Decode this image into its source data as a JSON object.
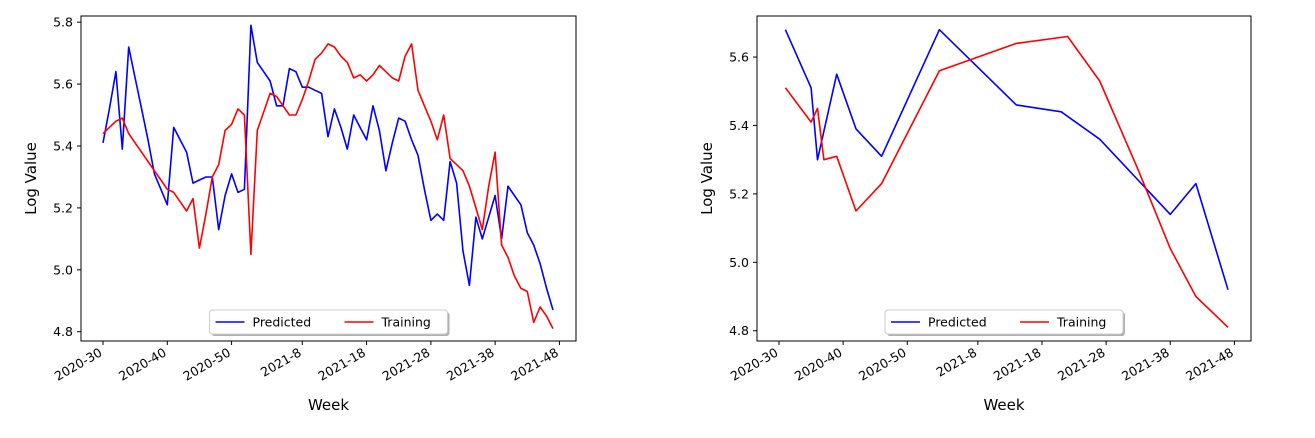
{
  "chart_data": [
    {
      "type": "line",
      "title": "",
      "xlabel": "Week",
      "ylabel": "Log Value",
      "ylim": [
        4.77,
        5.82
      ],
      "x_range_weeks": [
        -1.2,
        69.6
      ],
      "xticks": [
        {
          "week": 0,
          "label": "2020-30"
        },
        {
          "week": 10,
          "label": "2020-40"
        },
        {
          "week": 20,
          "label": "2020-50"
        },
        {
          "week": 31,
          "label": "2021-8"
        },
        {
          "week": 41,
          "label": "2021-18"
        },
        {
          "week": 51,
          "label": "2021-28"
        },
        {
          "week": 61,
          "label": "2021-38"
        },
        {
          "week": 71,
          "label": "2021-48"
        }
      ],
      "yticks": [
        "4.8",
        "5.0",
        "5.2",
        "5.4",
        "5.6",
        "5.8"
      ],
      "grid": false,
      "legend_position": "bottom-center",
      "series": [
        {
          "name": "Predicted",
          "color": "#0000ff",
          "x": [
            0,
            1,
            2,
            3,
            4,
            5,
            6,
            7,
            8,
            9,
            10,
            11,
            12,
            13,
            14,
            15,
            16,
            17,
            18,
            19,
            20,
            21,
            22,
            23,
            24,
            25,
            26,
            27,
            28,
            29,
            30,
            31,
            32,
            33,
            34,
            35,
            36,
            37,
            38,
            39,
            40,
            41,
            42,
            43,
            44,
            45,
            46,
            47,
            48,
            49,
            50,
            51,
            52,
            53,
            54,
            55,
            56,
            57,
            58,
            59,
            60,
            61,
            62,
            63,
            64,
            65,
            66,
            67,
            68,
            69,
            70
          ],
          "values": [
            5.41,
            5.52,
            5.64,
            5.39,
            5.72,
            5.62,
            5.52,
            5.42,
            5.31,
            5.26,
            5.21,
            5.46,
            5.42,
            5.38,
            5.28,
            5.29,
            5.3,
            5.3,
            5.13,
            5.24,
            5.31,
            5.25,
            5.26,
            5.79,
            5.67,
            5.64,
            5.61,
            5.53,
            5.53,
            5.65,
            5.64,
            5.59,
            5.59,
            5.58,
            5.57,
            5.43,
            5.52,
            5.46,
            5.39,
            5.5,
            5.46,
            5.42,
            5.53,
            5.45,
            5.32,
            5.41,
            5.49,
            5.48,
            5.42,
            5.37,
            5.26,
            5.16,
            5.18,
            5.16,
            5.35,
            5.28,
            5.06,
            4.95,
            5.17,
            5.1,
            5.17,
            5.24,
            5.1,
            5.27,
            5.24,
            5.21,
            5.12,
            5.08,
            5.02,
            4.94,
            4.87
          ]
        },
        {
          "name": "Training",
          "color": "#ff0000",
          "x": [
            0,
            1,
            2,
            3,
            4,
            5,
            6,
            7,
            8,
            9,
            10,
            11,
            12,
            13,
            14,
            15,
            16,
            17,
            18,
            19,
            20,
            21,
            22,
            23,
            24,
            25,
            26,
            27,
            28,
            29,
            30,
            31,
            32,
            33,
            34,
            35,
            36,
            37,
            38,
            39,
            40,
            41,
            42,
            43,
            44,
            45,
            46,
            47,
            48,
            49,
            50,
            51,
            52,
            53,
            54,
            55,
            56,
            57,
            58,
            59,
            60,
            61,
            62,
            63,
            64,
            65,
            66,
            67,
            68,
            69,
            70
          ],
          "values": [
            5.44,
            5.46,
            5.48,
            5.49,
            5.44,
            5.41,
            5.38,
            5.35,
            5.32,
            5.29,
            5.26,
            5.25,
            5.22,
            5.19,
            5.23,
            5.07,
            5.18,
            5.3,
            5.34,
            5.45,
            5.47,
            5.52,
            5.5,
            5.05,
            5.45,
            5.51,
            5.57,
            5.56,
            5.53,
            5.5,
            5.5,
            5.55,
            5.61,
            5.68,
            5.7,
            5.73,
            5.72,
            5.69,
            5.67,
            5.62,
            5.63,
            5.61,
            5.63,
            5.66,
            5.64,
            5.62,
            5.61,
            5.69,
            5.73,
            5.58,
            5.53,
            5.48,
            5.42,
            5.5,
            5.36,
            5.34,
            5.32,
            5.27,
            5.2,
            5.13,
            5.27,
            5.38,
            5.08,
            5.04,
            4.98,
            4.94,
            4.93,
            4.83,
            4.88,
            4.85,
            4.81
          ]
        }
      ]
    },
    {
      "type": "line",
      "title": "",
      "xlabel": "Week",
      "ylabel": "Log Value",
      "ylim": [
        4.77,
        5.72
      ],
      "x_range_weeks": [
        -1.2,
        69.6
      ],
      "xticks": [
        {
          "week": 0,
          "label": "2020-30"
        },
        {
          "week": 10,
          "label": "2020-40"
        },
        {
          "week": 20,
          "label": "2020-50"
        },
        {
          "week": 31,
          "label": "2021-8"
        },
        {
          "week": 41,
          "label": "2021-18"
        },
        {
          "week": 51,
          "label": "2021-28"
        },
        {
          "week": 61,
          "label": "2021-38"
        },
        {
          "week": 71,
          "label": "2021-48"
        }
      ],
      "yticks": [
        "4.8",
        "5.0",
        "5.2",
        "5.4",
        "5.6"
      ],
      "grid": false,
      "legend_position": "bottom-center",
      "series": [
        {
          "name": "Predicted",
          "color": "#0000ff",
          "x": [
            1,
            5,
            6,
            9,
            12,
            16,
            25,
            37,
            44,
            50,
            61,
            65,
            70
          ],
          "values": [
            5.68,
            5.51,
            5.3,
            5.55,
            5.39,
            5.31,
            5.68,
            5.46,
            5.44,
            5.36,
            5.14,
            5.23,
            4.92
          ]
        },
        {
          "name": "Training",
          "color": "#ff0000",
          "x": [
            1,
            5,
            6,
            7,
            9,
            12,
            16,
            25,
            37,
            45,
            50,
            56,
            61,
            65,
            70
          ],
          "values": [
            5.51,
            5.41,
            5.45,
            5.3,
            5.31,
            5.15,
            5.23,
            5.56,
            5.64,
            5.66,
            5.53,
            5.27,
            5.04,
            4.9,
            4.81
          ]
        }
      ]
    }
  ]
}
